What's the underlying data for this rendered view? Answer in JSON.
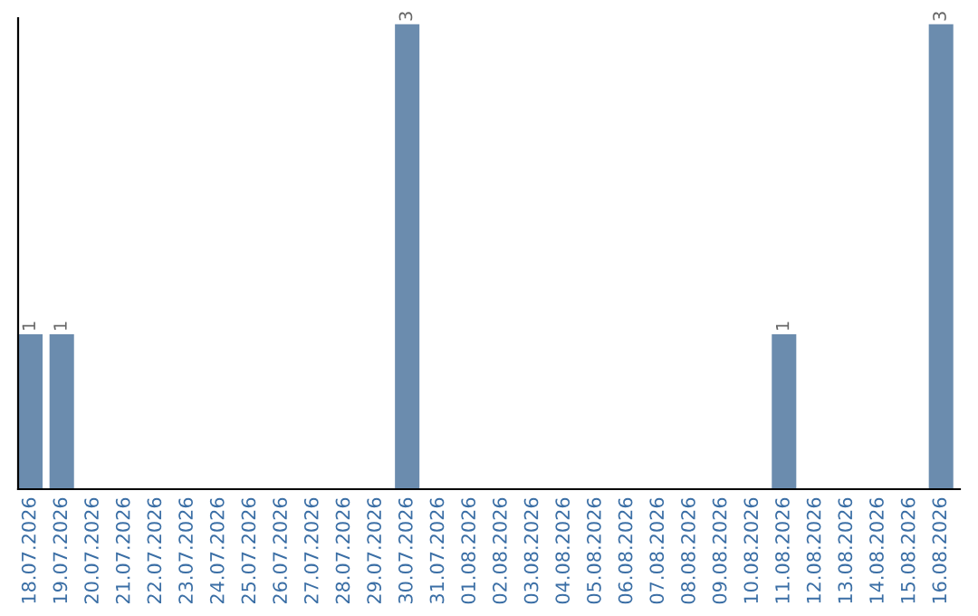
{
  "chart_data": {
    "type": "bar",
    "categories": [
      "18.07.2026",
      "19.07.2026",
      "20.07.2026",
      "21.07.2026",
      "22.07.2026",
      "23.07.2026",
      "24.07.2026",
      "25.07.2026",
      "26.07.2026",
      "27.07.2026",
      "28.07.2026",
      "29.07.2026",
      "30.07.2026",
      "31.07.2026",
      "01.08.2026",
      "02.08.2026",
      "03.08.2026",
      "04.08.2026",
      "05.08.2026",
      "06.08.2026",
      "07.08.2026",
      "08.08.2026",
      "09.08.2026",
      "10.08.2026",
      "11.08.2026",
      "12.08.2026",
      "13.08.2026",
      "14.08.2026",
      "15.08.2026",
      "16.08.2026"
    ],
    "values": [
      1,
      1,
      0,
      0,
      0,
      0,
      0,
      0,
      0,
      0,
      0,
      0,
      3,
      0,
      0,
      0,
      0,
      0,
      0,
      0,
      0,
      0,
      0,
      0,
      1,
      0,
      0,
      0,
      0,
      3
    ],
    "value_labels": [
      "1",
      "1",
      null,
      null,
      null,
      null,
      null,
      null,
      null,
      null,
      null,
      null,
      "3",
      null,
      null,
      null,
      null,
      null,
      null,
      null,
      null,
      null,
      null,
      null,
      "1",
      null,
      null,
      null,
      null,
      "3"
    ],
    "color": "#6b8cae",
    "ylim": [
      0,
      3.04
    ],
    "tick_labels": "x",
    "grid": false,
    "legend": false
  }
}
